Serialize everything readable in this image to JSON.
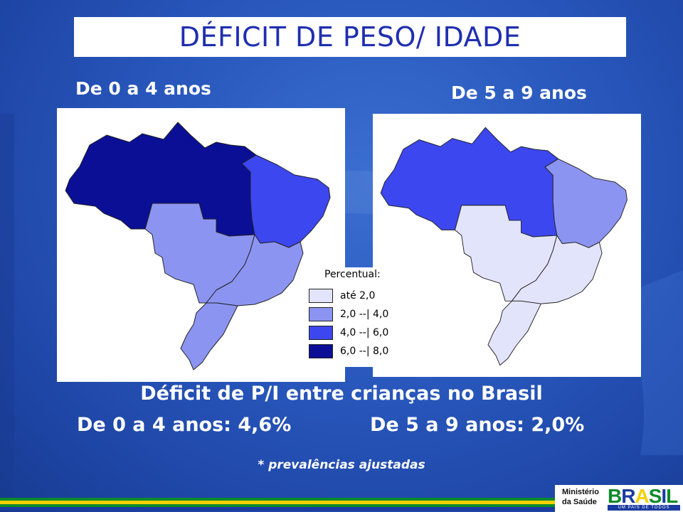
{
  "title": "DÉFICIT DE PESO/ IDADE",
  "maps": {
    "left": {
      "subtitle": "De 0 a 4 anos",
      "regions": {
        "norte": "6,0 --| 8,0",
        "nordeste": "4,0 --| 6,0",
        "centro_oeste": "2,0 --| 4,0",
        "sudeste": "2,0 --| 4,0",
        "sul": "2,0 --| 4,0"
      }
    },
    "right": {
      "subtitle": "De 5 a 9 anos",
      "regions": {
        "norte": "4,0 --| 6,0",
        "nordeste": "2,0 --| 4,0",
        "centro_oeste": "até 2,0",
        "sudeste": "até 2,0",
        "sul": "até 2,0"
      }
    }
  },
  "legend": {
    "title": "Percentual:",
    "items": [
      {
        "label": "até 2,0",
        "color": "#e2e4fb"
      },
      {
        "label": "2,0 --| 4,0",
        "color": "#8c94f2"
      },
      {
        "label": "4,0 --| 6,0",
        "color": "#3c47f0"
      },
      {
        "label": "6,0 --| 8,0",
        "color": "#0a0f96"
      }
    ]
  },
  "captions": {
    "main": "Déficit de P/I entre crianças no Brasil",
    "left": "De 0 a 4 anos: 4,6%",
    "right": "De 5 a 9 anos: 2,0%",
    "note": "* prevalências ajustadas"
  },
  "logos": {
    "ministry_line1": "Ministério",
    "ministry_line2": "da Saúde",
    "brasil": "BRASIL",
    "tagline": "UM PAÍS DE TODOS"
  },
  "colors": {
    "title": "#1f2eb0",
    "background": "#2a59be",
    "flag_green": "#0b8a2b",
    "flag_yellow": "#f5d000",
    "flag_blue": "#1a3aa0"
  }
}
